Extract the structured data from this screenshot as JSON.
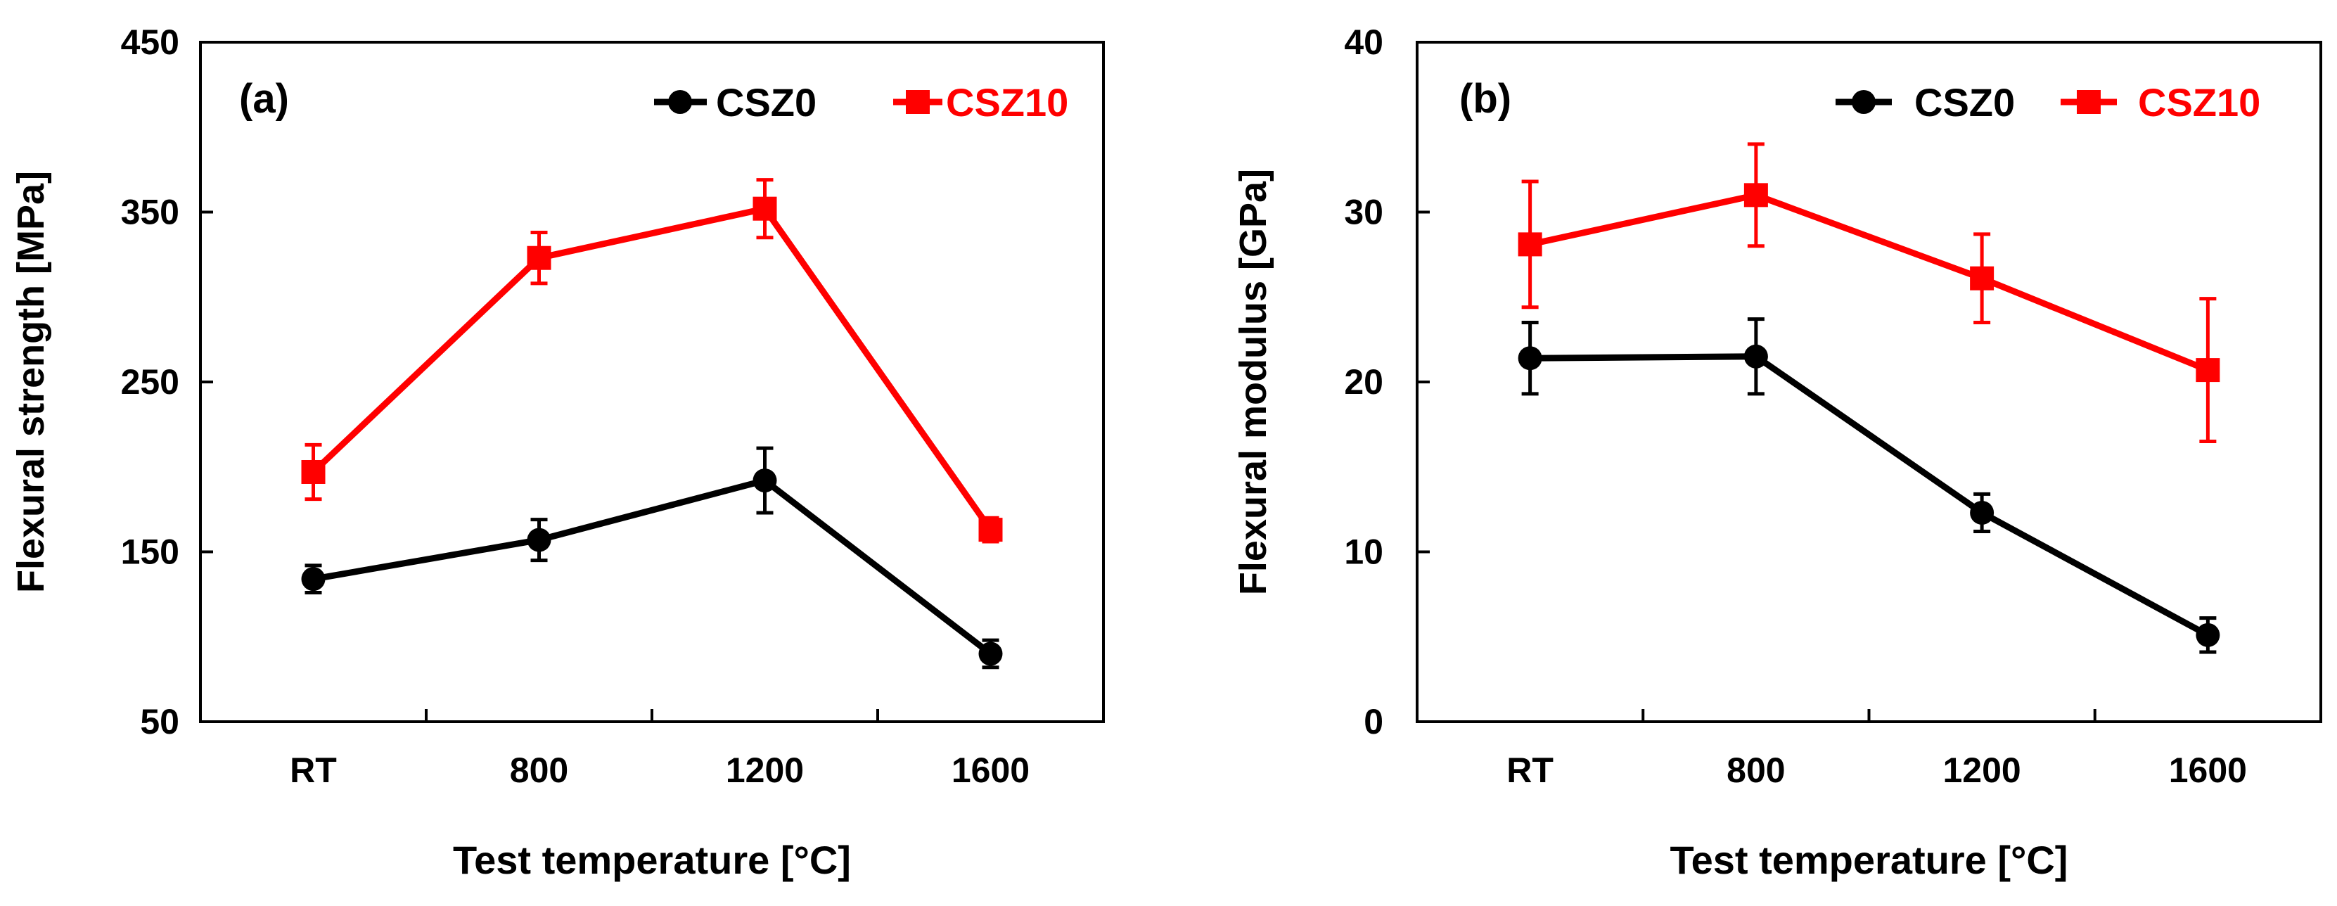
{
  "chart_data": [
    {
      "type": "line",
      "panel_label": "(a)",
      "title": "",
      "xlabel": "Test temperature [°C]",
      "ylabel": "Flexural strength [MPa]",
      "categories": [
        "RT",
        "800",
        "1200",
        "1600"
      ],
      "ylim": [
        50,
        450
      ],
      "yticks": [
        50,
        150,
        250,
        350,
        450
      ],
      "grid": false,
      "legend_position": "top-right",
      "series": [
        {
          "name": "CSZ0",
          "color": "#000000",
          "marker": "circle",
          "values": [
            134,
            157,
            192,
            90
          ],
          "errors": [
            8,
            12,
            19,
            8
          ]
        },
        {
          "name": "CSZ10",
          "color": "#ff0000",
          "marker": "square",
          "values": [
            197,
            323,
            352,
            163
          ],
          "errors": [
            16,
            15,
            17,
            7
          ]
        }
      ]
    },
    {
      "type": "line",
      "panel_label": "(b)",
      "title": "",
      "xlabel": "Test temperature [°C]",
      "ylabel": "Flexural modulus [GPa]",
      "categories": [
        "RT",
        "800",
        "1200",
        "1600"
      ],
      "ylim": [
        0,
        40
      ],
      "yticks": [
        0,
        10,
        20,
        30,
        40
      ],
      "grid": false,
      "legend_position": "top-right",
      "series": [
        {
          "name": "CSZ0",
          "color": "#000000",
          "marker": "circle",
          "values": [
            21.4,
            21.5,
            12.3,
            5.1
          ],
          "errors": [
            2.1,
            2.2,
            1.1,
            1.0
          ]
        },
        {
          "name": "CSZ10",
          "color": "#ff0000",
          "marker": "square",
          "values": [
            28.1,
            31.0,
            26.1,
            20.7
          ],
          "errors": [
            3.7,
            3.0,
            2.6,
            4.2
          ]
        }
      ]
    }
  ]
}
